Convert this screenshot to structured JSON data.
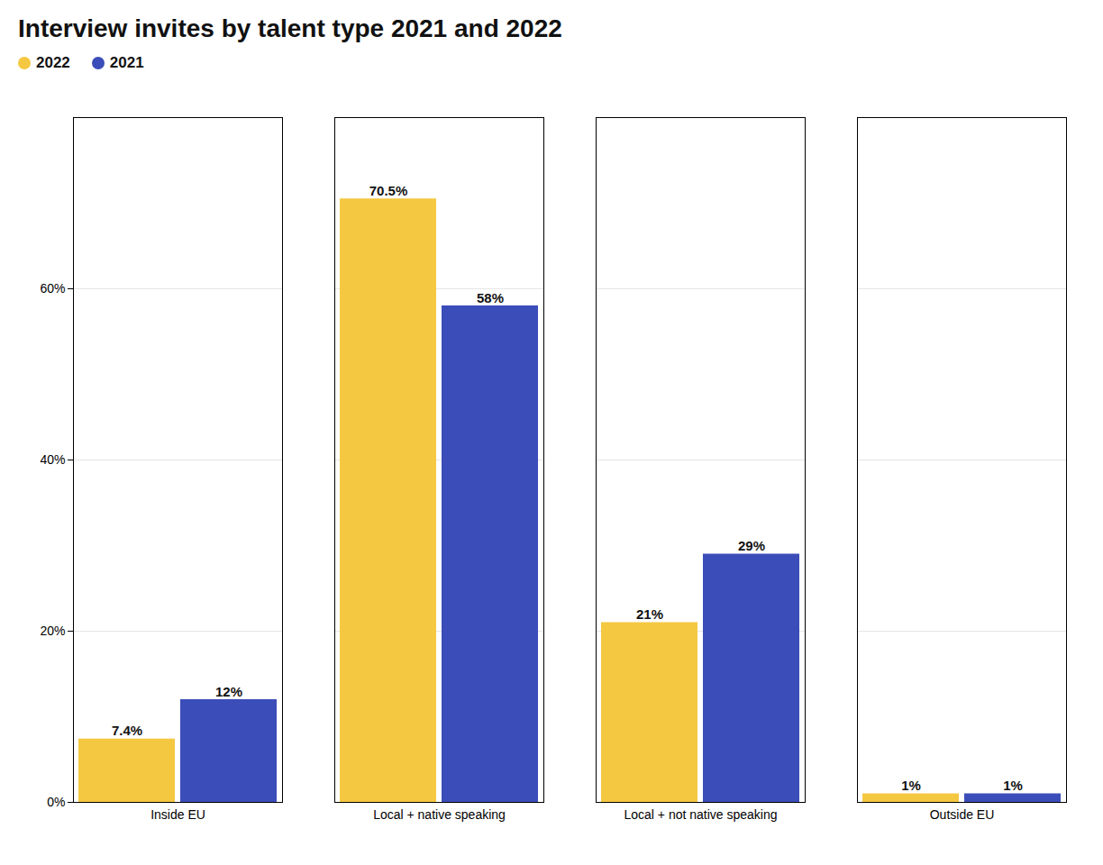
{
  "chart_data": {
    "type": "bar",
    "title": "Interview invites by talent type 2021 and 2022",
    "categories": [
      "Inside EU",
      "Local + native speaking",
      "Local + not native speaking",
      "Outside EU"
    ],
    "series": [
      {
        "name": "2022",
        "color": "#F5C842",
        "values": [
          7.4,
          70.5,
          21,
          1
        ],
        "value_labels": [
          "7.4%",
          "70.5%",
          "21%",
          "1%"
        ]
      },
      {
        "name": "2021",
        "color": "#3B4DB8",
        "values": [
          12,
          58,
          29,
          1
        ],
        "value_labels": [
          "12%",
          "58%",
          "29%",
          "1%"
        ]
      }
    ],
    "ylim": [
      0,
      80
    ],
    "yticks": [
      {
        "value": 0,
        "label": "0%"
      },
      {
        "value": 20,
        "label": "20%"
      },
      {
        "value": 40,
        "label": "40%"
      },
      {
        "value": 60,
        "label": "60%"
      }
    ],
    "grid": true,
    "legend": "upper left",
    "data_labels": true
  }
}
